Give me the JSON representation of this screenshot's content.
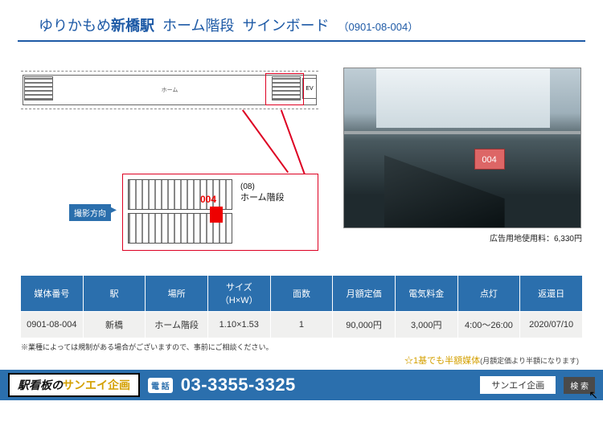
{
  "title": {
    "line_prefix": "ゆりかもめ",
    "station": "新橋駅",
    "location": "ホーム階段",
    "type": "サインボード",
    "code": "（0901-08-004）"
  },
  "diagram": {
    "platform_label": "ホーム",
    "ev_label": "EV",
    "detail_number": "(08)",
    "detail_label": "ホーム階段",
    "marker_number": "004",
    "direction_label": "撮影方向"
  },
  "photo": {
    "sign_number": "004",
    "caption": "広告用地使用料：6,330円"
  },
  "table": {
    "headers": [
      "媒体番号",
      "駅",
      "場所",
      "サイズ（H×W）",
      "面数",
      "月額定価",
      "電気料金",
      "点灯",
      "返還日"
    ],
    "row": [
      "0901-08-004",
      "新橋",
      "ホーム階段",
      "1.10×1.53",
      "1",
      "90,000円",
      "3,000円",
      "4:00〜26:00",
      "2020/07/10"
    ],
    "note": "※業種によっては規制がある場合がございますので、事前にご相談ください。",
    "promo": "☆1基でも半額媒体",
    "promo_sub": "(月額定価より半額になります)"
  },
  "footer": {
    "banner_pre": "駅看板の",
    "banner_brand": "サンエイ企画",
    "tel_label": "電 話",
    "tel": "03-3355-3325",
    "search_box": "サンエイ企画",
    "search_btn": "検 索"
  },
  "colors": {
    "primary": "#2b6fad",
    "accent_red": "#d02030",
    "accent_gold": "#d4a000"
  }
}
